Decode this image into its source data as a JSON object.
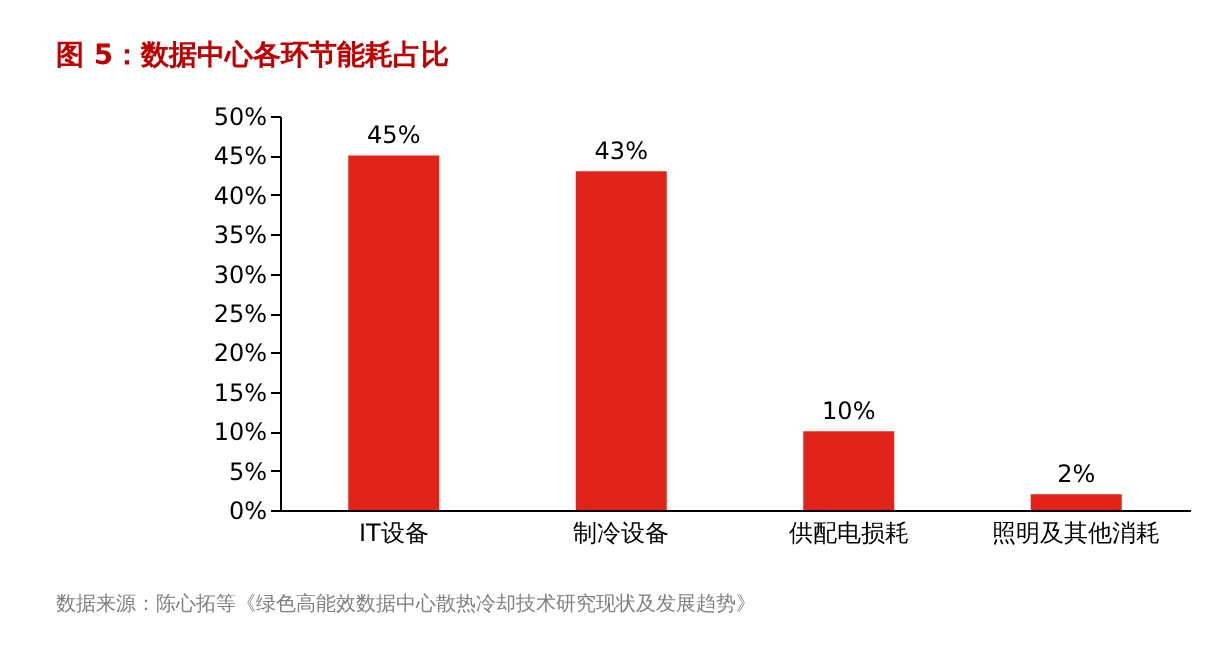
{
  "chart_data": {
    "type": "bar",
    "title": "图 5：数据中心各环节能耗占比",
    "categories": [
      "IT设备",
      "制冷设备",
      "供配电损耗",
      "照明及其他消耗"
    ],
    "values": [
      45,
      43,
      10,
      2
    ],
    "color": "#e2231a",
    "value_labels": [
      "45%",
      "43%",
      "10%",
      "2%"
    ],
    "ylim": [
      0,
      50
    ],
    "yticks": [
      {
        "value": 0,
        "label": "0%"
      },
      {
        "value": 5,
        "label": "5%"
      },
      {
        "value": 10,
        "label": "10%"
      },
      {
        "value": 15,
        "label": "15%"
      },
      {
        "value": 20,
        "label": "20%"
      },
      {
        "value": 25,
        "label": "25%"
      },
      {
        "value": 30,
        "label": "30%"
      },
      {
        "value": 35,
        "label": "35%"
      },
      {
        "value": 40,
        "label": "40%"
      },
      {
        "value": 45,
        "label": "45%"
      },
      {
        "value": 50,
        "label": "50%"
      }
    ],
    "grid": false,
    "annotations": [
      "数据来源：陈心拓等《绿色高能效数据中心散热冷却技术研究现状及发展趋势》"
    ]
  }
}
